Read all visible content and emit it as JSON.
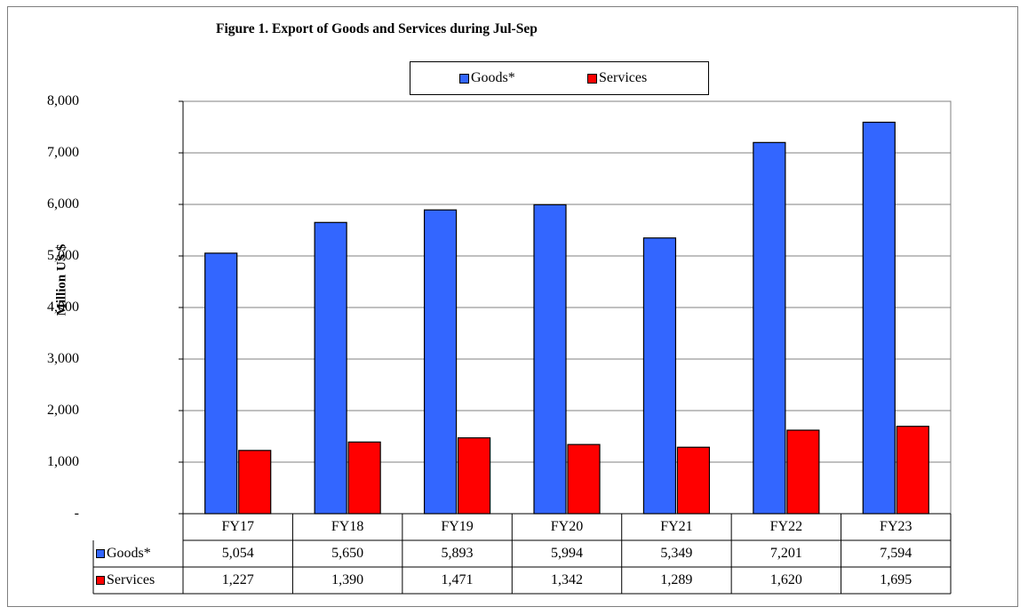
{
  "chart_data": {
    "type": "bar",
    "title": "Figure 1. Export of Goods and Services during Jul-Sep",
    "ylabel": "Million US $",
    "xlabel": "",
    "categories": [
      "FY17",
      "FY18",
      "FY19",
      "FY20",
      "FY21",
      "FY22",
      "FY23"
    ],
    "ylim": [
      0,
      8000
    ],
    "yticks": [
      "-",
      "1,000",
      "2,000",
      "3,000",
      "4,000",
      "5,000",
      "6,000",
      "7,000",
      "8,000"
    ],
    "grid": true,
    "legend_position": "top-center",
    "series": [
      {
        "name": "Goods*",
        "color": "#3366ff",
        "values": [
          5054,
          5650,
          5893,
          5994,
          5349,
          7201,
          7594
        ],
        "labels": [
          "5,054",
          "5,650",
          "5,893",
          "5,994",
          "5,349",
          "7,201",
          "7,594"
        ]
      },
      {
        "name": "Services",
        "color": "#ff0000",
        "values": [
          1227,
          1390,
          1471,
          1342,
          1289,
          1620,
          1695
        ],
        "labels": [
          "1,227",
          "1,390",
          "1,471",
          "1,342",
          "1,289",
          "1,620",
          "1,695"
        ]
      }
    ]
  }
}
